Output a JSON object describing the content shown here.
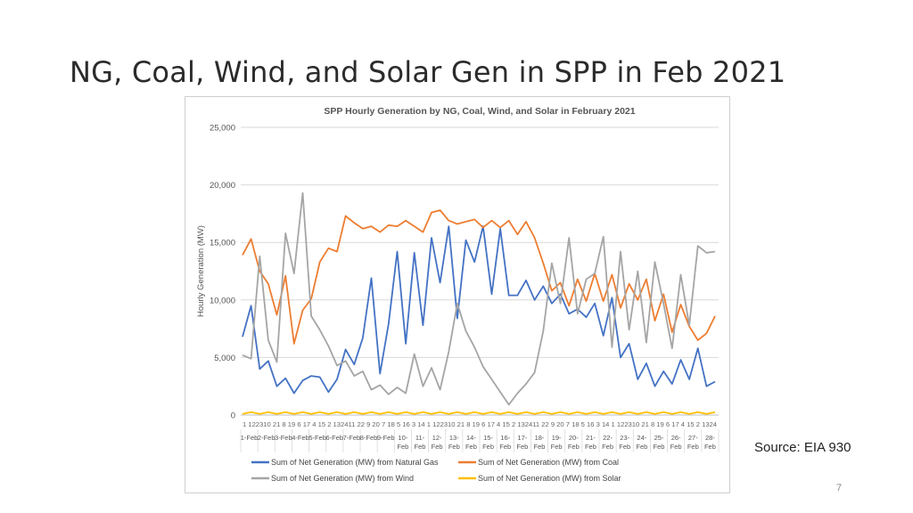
{
  "slide": {
    "title": "NG, Coal, Wind, and Solar Gen in SPP in Feb 2021",
    "source": "Source: EIA 930",
    "page_number": "7"
  },
  "chart_data": {
    "type": "line",
    "title": "SPP Hourly Generation by NG, Coal, Wind, and Solar in February 2021",
    "ylabel": "Hourly Generation (MW)",
    "xlabel": "",
    "ylim": [
      0,
      25000
    ],
    "yticks": [
      0,
      5000,
      10000,
      15000,
      20000,
      25000
    ],
    "ytick_labels": [
      "0",
      "5,000",
      "10,000",
      "15,000",
      "20,000",
      "25,000"
    ],
    "grid": true,
    "legend": "bottom",
    "x_hour_ticks": "1 122310 21 8 19 6 17 4 15 2 132411 22 9 20 7 18 5 16 3 14 1 122310 21 8 19 6 17 4 15 2 132411 22 9 20 7 18 5 16 3 14 1 122310 21 8 19 6 17 4 15 2 1324",
    "days": [
      "1-Feb",
      "2-Feb",
      "3-Feb",
      "4-Feb",
      "5-Feb",
      "6-Feb",
      "7-Feb",
      "8-Feb",
      "9-Feb",
      "10-Feb",
      "11-Feb",
      "12-Feb",
      "13-Feb",
      "14-Feb",
      "15-Feb",
      "16-Feb",
      "17-Feb",
      "18-Feb",
      "19-Feb",
      "20-Feb",
      "21-Feb",
      "22-Feb",
      "23-Feb",
      "24-Feb",
      "25-Feb",
      "26-Feb",
      "27-Feb",
      "28-Feb"
    ],
    "day_label_lines": [
      [
        "1-Feb"
      ],
      [
        "2-Feb"
      ],
      [
        "3-Feb"
      ],
      [
        "4-Feb"
      ],
      [
        "5-Feb"
      ],
      [
        "6-Feb"
      ],
      [
        "7-Feb"
      ],
      [
        "8-Feb"
      ],
      [
        "9-Feb"
      ],
      [
        "10-",
        "Feb"
      ],
      [
        "11-",
        "Feb"
      ],
      [
        "12-",
        "Feb"
      ],
      [
        "13-",
        "Feb"
      ],
      [
        "14-",
        "Feb"
      ],
      [
        "15-",
        "Feb"
      ],
      [
        "16-",
        "Feb"
      ],
      [
        "17-",
        "Feb"
      ],
      [
        "18-",
        "Feb"
      ],
      [
        "19-",
        "Feb"
      ],
      [
        "20-",
        "Feb"
      ],
      [
        "21-",
        "Feb"
      ],
      [
        "22-",
        "Feb"
      ],
      [
        "23-",
        "Feb"
      ],
      [
        "24-",
        "Feb"
      ],
      [
        "25-",
        "Feb"
      ],
      [
        "26-",
        "Feb"
      ],
      [
        "27-",
        "Feb"
      ],
      [
        "28-",
        "Feb"
      ]
    ],
    "series": [
      {
        "name": "Sum of Net Generation (MW) from Natural Gas",
        "color": "#4472C4",
        "values": [
          6800,
          9500,
          4000,
          4700,
          2500,
          3200,
          1900,
          3000,
          3400,
          3300,
          2000,
          3100,
          5700,
          4400,
          6700,
          11900,
          3600,
          7900,
          14200,
          6200,
          14100,
          7800,
          15400,
          11500,
          16400,
          8400,
          15200,
          13300,
          16400,
          10500,
          16200,
          10400,
          10400,
          11700,
          10000,
          11200,
          9700,
          10500,
          8800,
          9200,
          8500,
          9700,
          6900,
          10200,
          5000,
          6200,
          3100,
          4500,
          2500,
          3800,
          2700,
          4800,
          3100,
          5800,
          2500,
          2900
        ]
      },
      {
        "name": "Sum of Net Generation (MW) from Coal",
        "color": "#ED7D31",
        "values": [
          13900,
          15300,
          12500,
          11400,
          8700,
          12100,
          6200,
          9100,
          10100,
          13300,
          14500,
          14200,
          17300,
          16700,
          16200,
          16400,
          15900,
          16500,
          16400,
          16900,
          16400,
          15900,
          17600,
          17800,
          16900,
          16600,
          16800,
          17000,
          16300,
          16900,
          16300,
          16900,
          15700,
          16800,
          15400,
          13200,
          10800,
          11500,
          9500,
          11800,
          9900,
          12300,
          9900,
          12200,
          9300,
          11400,
          10000,
          11800,
          8200,
          10500,
          7200,
          9600,
          7700,
          6500,
          7100,
          8600
        ]
      },
      {
        "name": "Sum of Net Generation (MW) from Wind",
        "color": "#A5A5A5",
        "values": [
          5200,
          4900,
          13800,
          6500,
          4600,
          15800,
          12300,
          19300,
          8600,
          7400,
          6000,
          4300,
          4700,
          3400,
          3800,
          2200,
          2600,
          1800,
          2400,
          1900,
          5300,
          2500,
          4100,
          2200,
          5500,
          9700,
          7300,
          5900,
          4200,
          3100,
          2000,
          900,
          1900,
          2700,
          3700,
          7300,
          13200,
          9700,
          15400,
          8800,
          11800,
          12300,
          15500,
          5900,
          14200,
          7400,
          12500,
          6300,
          13300,
          9700,
          5800,
          12200,
          7800,
          14700,
          14100,
          14200
        ]
      },
      {
        "name": "Sum of Net Generation (MW) from Solar",
        "color": "#FFC000",
        "values": [
          100,
          250,
          100,
          250,
          100,
          250,
          100,
          250,
          100,
          250,
          100,
          250,
          100,
          250,
          100,
          250,
          100,
          250,
          100,
          250,
          100,
          250,
          100,
          250,
          100,
          250,
          100,
          250,
          100,
          250,
          100,
          250,
          100,
          250,
          100,
          250,
          100,
          250,
          100,
          250,
          100,
          250,
          100,
          250,
          100,
          250,
          100,
          250,
          100,
          250,
          100,
          250,
          100,
          250,
          100,
          250
        ]
      }
    ]
  }
}
